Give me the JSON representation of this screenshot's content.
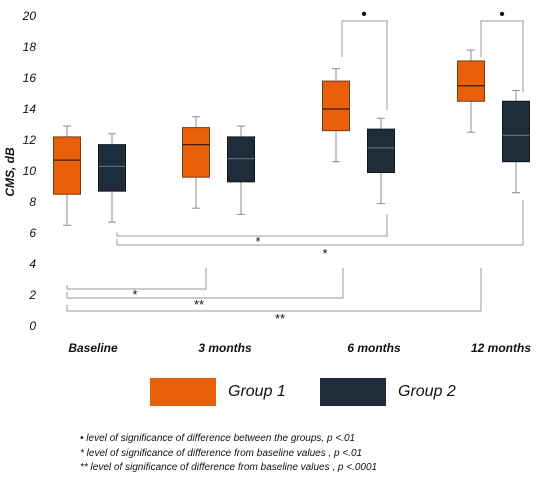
{
  "chart_data": {
    "type": "box",
    "ylabel": "CMS, dB",
    "ylim": [
      0,
      20
    ],
    "yticks": [
      0,
      2,
      4,
      6,
      8,
      10,
      12,
      14,
      16,
      18,
      20
    ],
    "categories": [
      "Baseline",
      "3 months",
      "6 months",
      "12 months"
    ],
    "series": [
      {
        "name": "Group 1",
        "color": "#e8600a",
        "boxes": [
          {
            "min": 6.5,
            "q1": 8.5,
            "median": 10.7,
            "q3": 12.2,
            "max": 12.9
          },
          {
            "min": 7.6,
            "q1": 9.6,
            "median": 11.7,
            "q3": 12.8,
            "max": 13.5
          },
          {
            "min": 10.6,
            "q1": 12.6,
            "median": 14.0,
            "q3": 15.8,
            "max": 16.6
          },
          {
            "min": 12.5,
            "q1": 14.5,
            "median": 15.5,
            "q3": 17.1,
            "max": 17.8
          }
        ]
      },
      {
        "name": "Group 2",
        "color": "#1f2d3a",
        "boxes": [
          {
            "min": 6.7,
            "q1": 8.7,
            "median": 10.3,
            "q3": 11.7,
            "max": 12.4
          },
          {
            "min": 7.2,
            "q1": 9.3,
            "median": 10.8,
            "q3": 12.2,
            "max": 12.9
          },
          {
            "min": 7.9,
            "q1": 9.9,
            "median": 11.5,
            "q3": 12.7,
            "max": 13.4
          },
          {
            "min": 8.6,
            "q1": 10.6,
            "median": 12.3,
            "q3": 14.5,
            "max": 15.2
          }
        ]
      }
    ],
    "between_group_markers": [
      {
        "category": "6 months",
        "symbol": "•"
      },
      {
        "category": "12 months",
        "symbol": "•"
      }
    ],
    "baseline_comparisons": [
      {
        "group": "Group 2",
        "to": "6 months",
        "symbol": "*"
      },
      {
        "group": "Group 2",
        "to": "12 months",
        "symbol": "*"
      },
      {
        "group": "Group 1",
        "to": "3 months",
        "symbol": "*"
      },
      {
        "group": "Group 1",
        "to": "6 months",
        "symbol": "**"
      },
      {
        "group": "Group 1",
        "to": "12 months",
        "symbol": "**"
      }
    ],
    "notes": [
      "•  level of significance of difference between the groups, p <.01",
      "* level of significance of difference from baseline values , p <.01",
      "** level of significance of difference from baseline values , p <.0001"
    ]
  },
  "legend": {
    "group1": {
      "label": "Group 1",
      "color": "#e8600a"
    },
    "group2": {
      "label": "Group 2",
      "color": "#1f2d3a"
    }
  }
}
